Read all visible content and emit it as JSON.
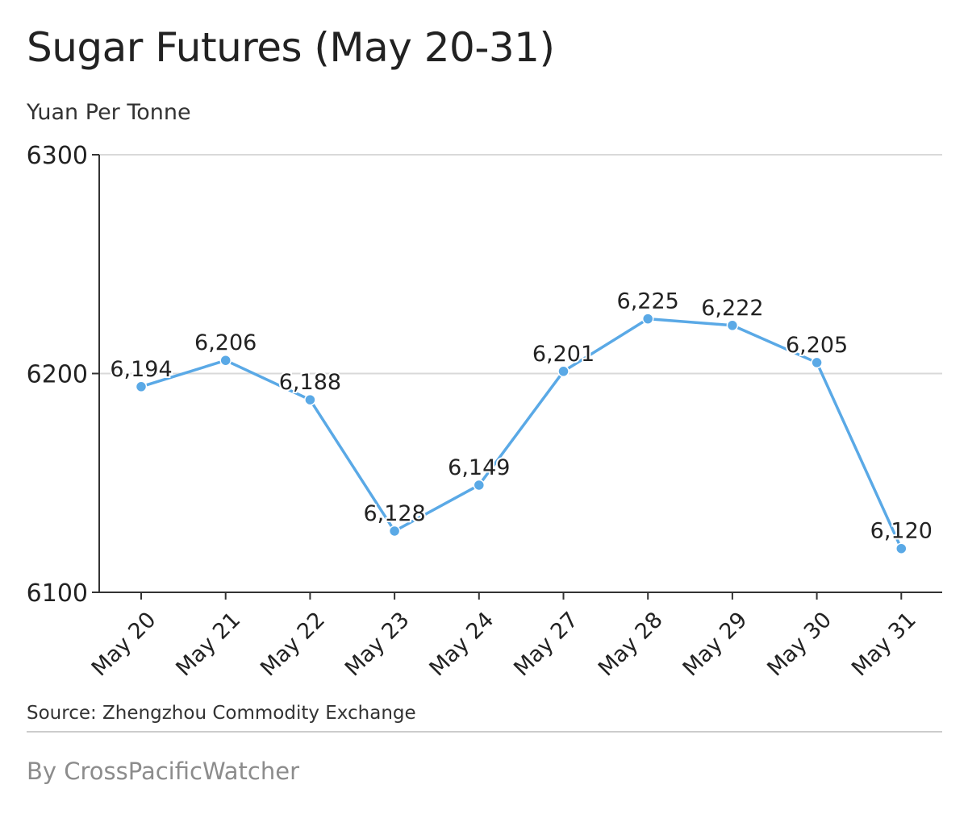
{
  "title": "Sugar Futures (May 20-31)",
  "subtitle": "Yuan Per Tonne",
  "source": "Source: Zhengzhou Commodity Exchange",
  "byline": "By CrossPacificWatcher",
  "colors": {
    "line": "#5aa9e6",
    "axis": "#333333",
    "grid": "#d9d9d9",
    "text": "#222222"
  },
  "chart_data": {
    "type": "line",
    "categories": [
      "May 20",
      "May 21",
      "May 22",
      "May 23",
      "May 24",
      "May 27",
      "May 28",
      "May 29",
      "May 30",
      "May 31"
    ],
    "values": [
      6194,
      6206,
      6188,
      6128,
      6149,
      6201,
      6225,
      6222,
      6205,
      6120
    ],
    "value_labels": [
      "6,194",
      "6,206",
      "6,188",
      "6,128",
      "6,149",
      "6,201",
      "6,225",
      "6,222",
      "6,205",
      "6,120"
    ],
    "ylim": [
      6100,
      6300
    ],
    "yticks": [
      6100,
      6200,
      6300
    ],
    "grid": true
  }
}
